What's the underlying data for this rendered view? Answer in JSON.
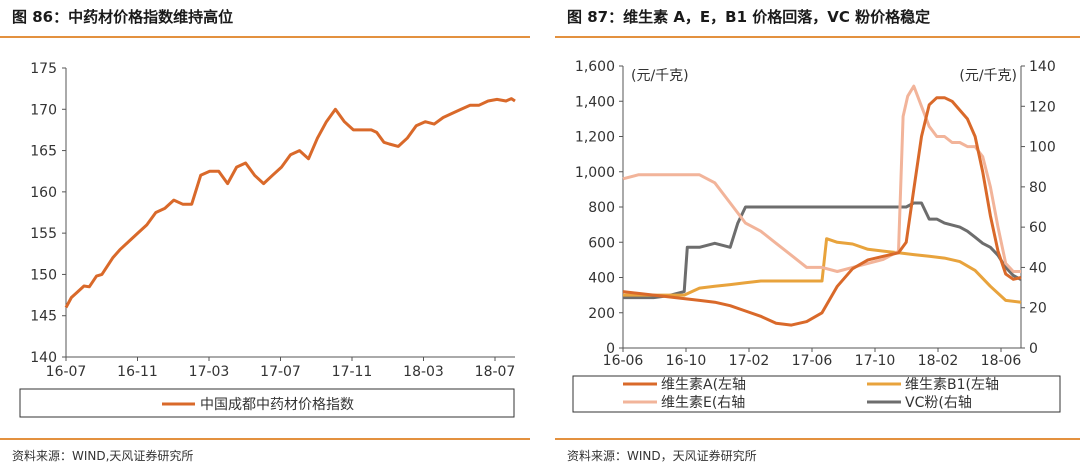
{
  "panel_left": {
    "title": "图 86：中药材价格指数维持高位",
    "source": "资料来源：WIND,天风证券研究所"
  },
  "panel_right": {
    "title": "图 87：维生素 A，E，B1 价格回落，VC 粉价格稳定",
    "source": "资料来源：WIND，天风证券研究所"
  },
  "chart_data": [
    {
      "type": "line",
      "xticks": [
        "16-07",
        "16-11",
        "17-03",
        "17-07",
        "17-11",
        "18-03",
        "18-07"
      ],
      "xrange": [
        0,
        25
      ],
      "ylim": [
        140,
        175
      ],
      "yticks": [
        140,
        145,
        150,
        155,
        160,
        165,
        170,
        175
      ],
      "legend_position": "bottom",
      "series": [
        {
          "name": "中国成都中药材价格指数",
          "color": "#d9692a",
          "x": [
            0,
            0.3,
            0.6,
            1.0,
            1.3,
            1.7,
            2.0,
            2.3,
            2.6,
            3.0,
            3.5,
            4.0,
            4.5,
            5.0,
            5.5,
            6.0,
            6.5,
            7.0,
            7.5,
            8.0,
            8.5,
            9.0,
            9.5,
            10.0,
            10.5,
            11.0,
            11.5,
            12.0,
            12.5,
            13.0,
            13.5,
            14.0,
            14.5,
            15.0,
            15.5,
            16.0,
            16.5,
            17.0,
            17.3,
            17.7,
            18.0,
            18.5,
            19.0,
            19.5,
            20.0,
            20.5,
            21.0,
            21.5,
            22.0,
            22.5,
            23.0,
            23.5,
            24.0,
            24.5,
            24.8,
            25.0
          ],
          "y": [
            146.0,
            147.2,
            147.8,
            148.6,
            148.5,
            149.8,
            150.0,
            151.0,
            152.0,
            153.0,
            154.0,
            155.0,
            156.0,
            157.5,
            158.0,
            159.0,
            158.5,
            158.5,
            162.0,
            162.5,
            162.5,
            161.0,
            163.0,
            163.5,
            162.0,
            161.0,
            162.0,
            163.0,
            164.5,
            165.0,
            164.0,
            166.5,
            168.5,
            170.0,
            168.5,
            167.5,
            167.5,
            167.5,
            167.2,
            166.0,
            165.8,
            165.5,
            166.5,
            168.0,
            168.5,
            168.2,
            169.0,
            169.5,
            170.0,
            170.5,
            170.5,
            171.0,
            171.2,
            171.0,
            171.3,
            171.0
          ]
        }
      ]
    },
    {
      "type": "line",
      "xticks": [
        "16-06",
        "16-10",
        "17-02",
        "17-06",
        "17-10",
        "18-02",
        "18-06"
      ],
      "xrange": [
        0,
        26
      ],
      "left_axis": {
        "unit": "(元/千克)",
        "ylim": [
          0,
          1600
        ],
        "ticks": [
          "0",
          "200",
          "400",
          "600",
          "800",
          "1,000",
          "1,200",
          "1,400",
          "1,600"
        ]
      },
      "right_axis": {
        "unit": "(元/千克)",
        "ylim": [
          0,
          140
        ],
        "ticks": [
          "0",
          "20",
          "40",
          "60",
          "80",
          "100",
          "120",
          "140"
        ]
      },
      "legend_position": "bottom",
      "series": [
        {
          "name": "维生素A(左轴",
          "axis": "left",
          "color": "#d9692a",
          "x": [
            0,
            1,
            2,
            3,
            4,
            5,
            6,
            7,
            8,
            9,
            10,
            11,
            12,
            13,
            14,
            15,
            16,
            17,
            18,
            18.5,
            19,
            19.5,
            20,
            20.5,
            21,
            21.5,
            22,
            22.5,
            23,
            23.5,
            24,
            24.5,
            25,
            25.5,
            26
          ],
          "y": [
            320,
            310,
            300,
            290,
            280,
            270,
            260,
            240,
            210,
            180,
            140,
            130,
            150,
            200,
            350,
            450,
            500,
            520,
            540,
            600,
            900,
            1200,
            1380,
            1420,
            1420,
            1400,
            1350,
            1300,
            1200,
            1000,
            750,
            550,
            420,
            390,
            400
          ]
        },
        {
          "name": "维生素B1(左轴",
          "axis": "left",
          "color": "#e8a33c",
          "x": [
            0,
            1,
            2,
            3,
            4,
            5,
            6,
            7,
            8,
            9,
            10,
            11,
            12,
            13,
            13.3,
            14,
            15,
            16,
            17,
            18,
            19,
            20,
            21,
            22,
            23,
            24,
            25,
            26
          ],
          "y": [
            300,
            300,
            300,
            300,
            300,
            340,
            350,
            360,
            370,
            380,
            380,
            380,
            380,
            380,
            620,
            600,
            590,
            560,
            550,
            540,
            530,
            520,
            510,
            490,
            440,
            350,
            270,
            260
          ]
        },
        {
          "name": "维生素E(右轴",
          "axis": "right",
          "color": "#f2b49a",
          "x": [
            0,
            1,
            2,
            3,
            4,
            5,
            6,
            7,
            8,
            9,
            10,
            11,
            12,
            13,
            14,
            15,
            16,
            17,
            17.5,
            18,
            18.3,
            18.6,
            19,
            19.5,
            20,
            20.5,
            21,
            21.5,
            22,
            22.5,
            23,
            23.5,
            24,
            24.5,
            25,
            25.5,
            26
          ],
          "y": [
            84,
            86,
            86,
            86,
            86,
            86,
            82,
            72,
            62,
            58,
            52,
            46,
            40,
            40,
            38,
            40,
            42,
            44,
            46,
            48,
            115,
            125,
            130,
            120,
            110,
            105,
            105,
            102,
            102,
            100,
            100,
            95,
            80,
            60,
            42,
            38,
            38
          ]
        },
        {
          "name": "VC粉(右轴",
          "axis": "right",
          "color": "#6d6d6d",
          "x": [
            0,
            1,
            2,
            3,
            4,
            4.2,
            5,
            6,
            7,
            7.5,
            8,
            9,
            10,
            11,
            12,
            13,
            14,
            15,
            16,
            17,
            18,
            18.5,
            19,
            19.5,
            20,
            20.5,
            21,
            22,
            22.5,
            23,
            23.5,
            24,
            24.5,
            25,
            25.5,
            26
          ],
          "y": [
            25,
            25,
            25,
            26,
            28,
            50,
            50,
            52,
            50,
            62,
            70,
            70,
            70,
            70,
            70,
            70,
            70,
            70,
            70,
            70,
            70,
            70,
            72,
            72,
            64,
            64,
            62,
            60,
            58,
            55,
            52,
            50,
            46,
            40,
            36,
            34
          ]
        }
      ]
    }
  ]
}
